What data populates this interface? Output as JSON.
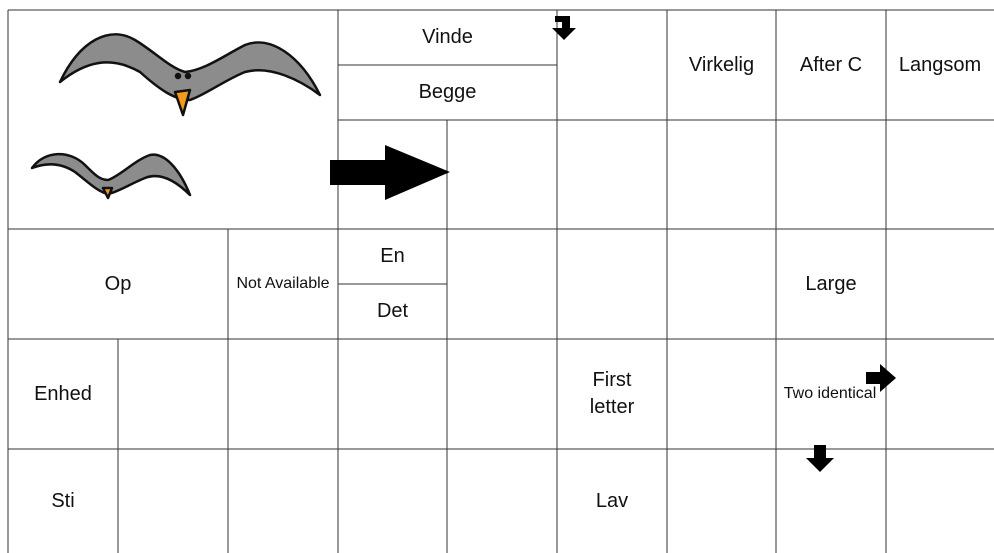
{
  "cells": [
    "Vinde",
    "Begge",
    "Virkelig",
    "After C",
    "Langsom",
    "Op",
    "Not Available",
    "En",
    "Det",
    "Large",
    "Enhed",
    "First letter",
    "Two identical",
    "Sti",
    "Lav"
  ]
}
